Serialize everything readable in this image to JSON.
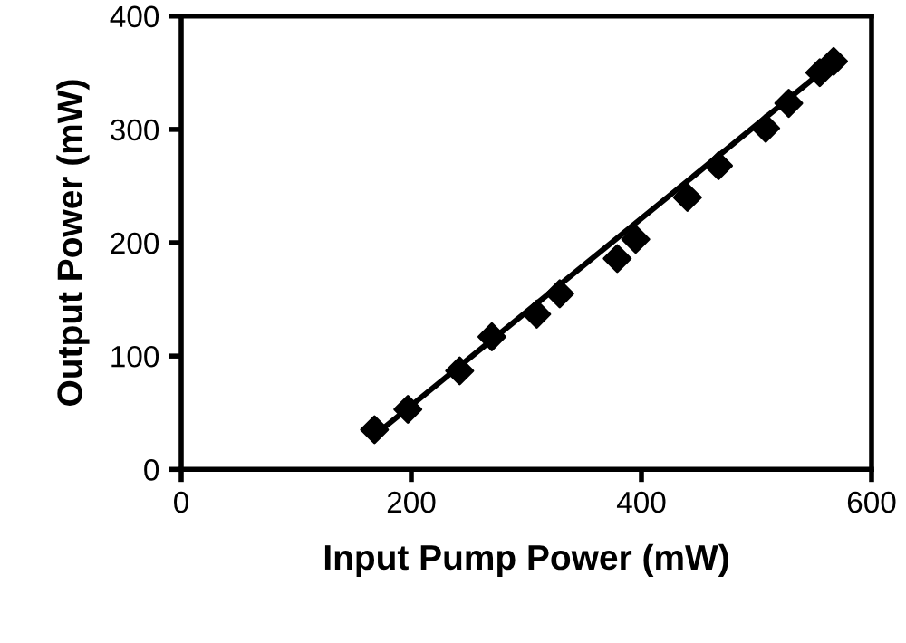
{
  "chart_data": {
    "type": "scatter",
    "xlabel": "Input Pump Power (mW)",
    "ylabel": "Output Power (mW)",
    "xlim": [
      0,
      600
    ],
    "xticks": [
      0,
      200,
      400,
      600
    ],
    "ylim": [
      0,
      400
    ],
    "yticks": [
      0,
      100,
      200,
      300,
      400
    ],
    "grid": false,
    "legend": false,
    "series": [
      {
        "color": "#000000",
        "marker": "diamond",
        "x": [
          168,
          197,
          242,
          270,
          309,
          329,
          379,
          395,
          440,
          467,
          508,
          528,
          555,
          567
        ],
        "values": [
          35,
          53,
          87,
          117,
          137,
          155,
          186,
          203,
          240,
          268,
          301,
          323,
          350,
          360
        ]
      },
      {
        "type": "line",
        "color": "#000000",
        "marker": "none",
        "line_style": "solid",
        "x": [
          168,
          569
        ],
        "values": [
          30,
          361
        ]
      }
    ]
  }
}
